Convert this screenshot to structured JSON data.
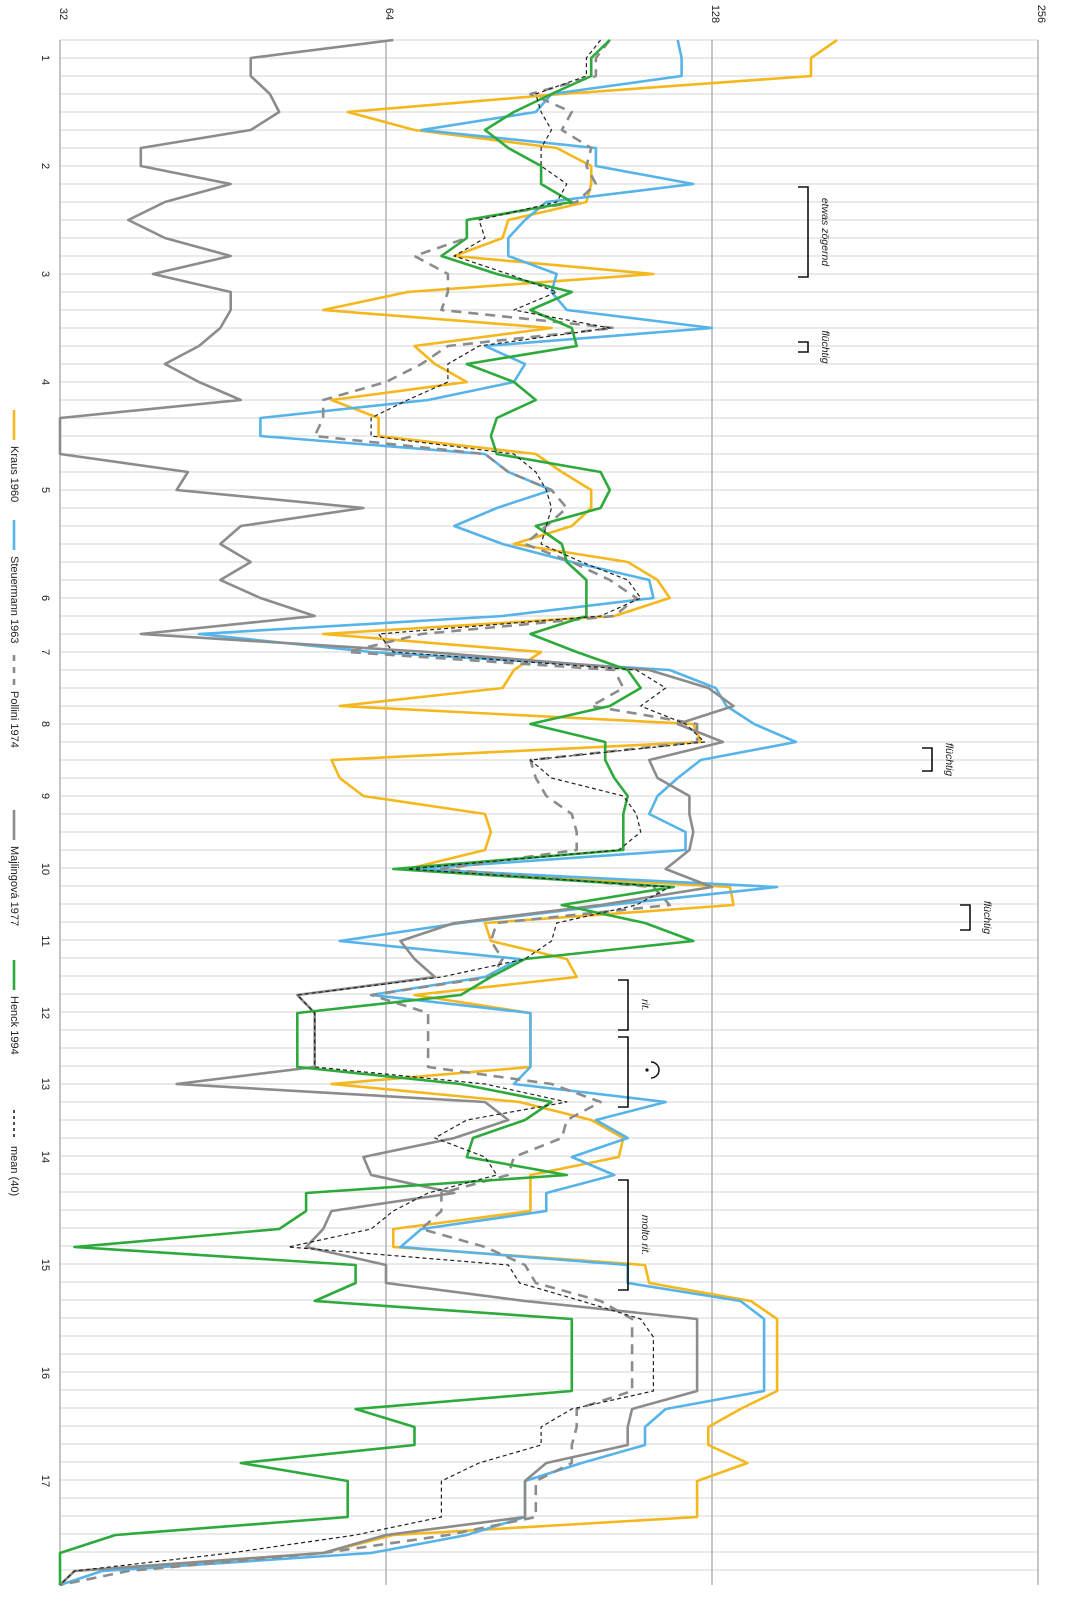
{
  "chart_data": {
    "type": "line",
    "orientation": "rotated-vertical",
    "y_scale": "log2",
    "ylim": [
      32,
      256
    ],
    "y_ticks": [
      "32",
      "64",
      "128",
      "256"
    ],
    "x_ticks": [
      "1",
      "2",
      "3",
      "4",
      "5",
      "6",
      "7",
      "8",
      "9",
      "10",
      "11",
      "12",
      "13",
      "14",
      "15",
      "16",
      "17"
    ],
    "legend_position": "bottom",
    "grid": true,
    "series": [
      {
        "name": "Kraus 1960",
        "color": "#F5B71E",
        "dash": "solid",
        "points": [
          [
            1,
            1.7
          ],
          [
            1,
            1.8
          ],
          [
            1,
            1.86
          ],
          [
            1,
            1.54
          ],
          [
            1,
            1.43
          ],
          [
            1,
            1.62
          ],
          [
            1,
            1.72
          ],
          [
            1,
            2.03
          ],
          [
            1,
            2.1
          ],
          [
            1,
            2.12
          ],
          [
            1,
            2.21
          ],
          [
            1,
            2.32
          ],
          [
            1,
            2.47
          ],
          [
            1,
            2.58
          ],
          [
            1,
            2.65
          ],
          [
            1,
            2.86
          ],
          [
            1,
            2.98
          ],
          [
            1,
            3.14
          ],
          [
            1,
            3.26
          ],
          [
            1,
            3.36
          ],
          [
            1,
            3.47
          ],
          [
            1,
            3.59
          ],
          [
            1,
            3.71
          ],
          [
            1,
            3.81
          ],
          [
            1,
            3.92
          ],
          [
            1,
            4.06
          ],
          [
            1,
            4.2
          ],
          [
            1,
            4.31
          ],
          [
            1,
            4.51
          ],
          [
            1,
            4.67
          ],
          [
            1,
            4.83
          ],
          [
            1,
            4.92
          ],
          [
            1,
            5.05
          ],
          [
            1,
            5.25
          ],
          [
            1,
            5.34
          ],
          [
            1,
            5.43
          ],
          [
            1,
            5.59
          ],
          [
            1,
            5.69
          ],
          [
            1,
            5.78
          ],
          [
            1,
            5.88
          ],
          [
            1,
            6.0
          ],
          [
            1,
            6.05
          ],
          [
            1,
            6.12
          ],
          [
            1,
            6.28
          ],
          [
            1,
            6.33
          ],
          [
            1,
            6.46
          ],
          [
            1,
            6.66
          ],
          [
            1,
            6.83
          ],
          [
            1,
            6.96
          ],
          [
            1,
            7.14
          ],
          [
            1,
            7.23
          ],
          [
            1,
            7.3
          ],
          [
            1,
            7.41
          ],
          [
            1,
            7.53
          ],
          [
            1,
            7.66
          ],
          [
            1,
            7.81
          ],
          [
            1,
            8.0
          ],
          [
            1,
            8.13
          ],
          [
            1,
            8.22
          ],
          [
            1,
            8.33
          ],
          [
            1,
            8.45
          ],
          [
            1,
            8.56
          ],
          [
            1,
            8.64
          ],
          [
            1,
            8.73
          ],
          [
            1,
            8.87
          ],
          [
            1,
            8.94
          ],
          [
            1,
            9.06
          ],
          [
            1,
            9.25
          ],
          [
            1,
            9.41
          ],
          [
            1,
            9.56
          ],
          [
            1,
            9.71
          ],
          [
            1,
            9.89
          ],
          [
            1,
            10.03
          ],
          [
            1,
            10.13
          ],
          [
            1,
            10.27
          ],
          [
            1,
            10.39
          ],
          [
            1,
            10.54
          ],
          [
            1,
            10.66
          ],
          [
            1,
            10.72
          ],
          [
            1,
            10.84
          ],
          [
            1,
            10.97
          ],
          [
            1,
            11.09
          ],
          [
            1,
            11.23
          ],
          [
            1,
            11.36
          ],
          [
            1,
            11.47
          ],
          [
            1,
            11.59
          ],
          [
            1,
            11.69
          ],
          [
            1,
            11.8
          ],
          [
            1,
            11.91
          ],
          [
            1,
            12.05
          ],
          [
            1,
            12.18
          ],
          [
            1,
            12.35
          ],
          [
            1,
            12.51
          ],
          [
            1,
            12.66
          ],
          [
            1,
            12.83
          ],
          [
            1,
            12.98
          ],
          [
            1,
            13.14
          ],
          [
            1,
            13.27
          ],
          [
            1,
            13.4
          ],
          [
            1,
            13.52
          ],
          [
            1,
            13.69
          ],
          [
            1,
            13.84
          ],
          [
            1,
            14.01
          ]
        ]
      }
    ]
  }
}
